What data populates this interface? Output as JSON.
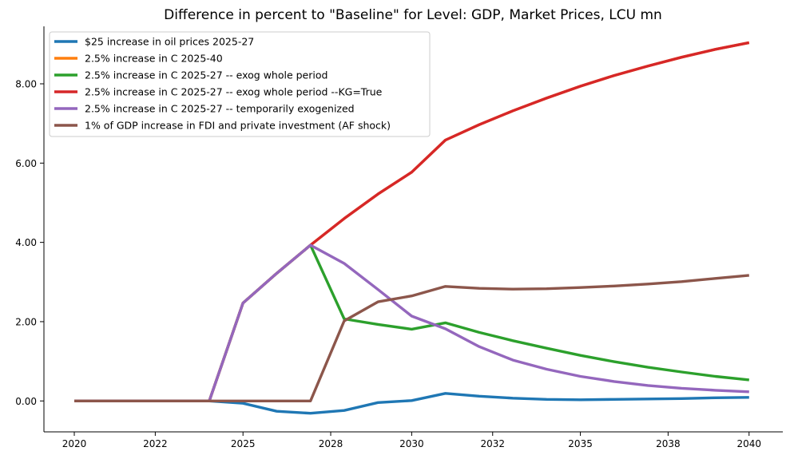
{
  "chart_data": {
    "type": "line",
    "title": "Difference in percent to \"Baseline\" for Level: GDP, Market Prices, LCU mn",
    "xlabel": "",
    "ylabel": "",
    "x": [
      2020,
      2021,
      2022,
      2023,
      2024,
      2025,
      2026,
      2027,
      2028,
      2029,
      2030,
      2031,
      2032,
      2033,
      2034,
      2035,
      2036,
      2037,
      2038,
      2039,
      2040
    ],
    "xticks": [
      2020,
      2022,
      2025,
      2028,
      2030,
      2032,
      2035,
      2038,
      2040
    ],
    "xtick_positions": [
      2020,
      2022.4,
      2025,
      2027.6,
      2030,
      2032.4,
      2035,
      2037.6,
      2040
    ],
    "yticks": [
      0,
      2,
      4,
      6,
      8
    ],
    "ytick_labels": [
      "0.00",
      "2.00",
      "4.00",
      "6.00",
      "8.00"
    ],
    "xlim": [
      2019.1,
      2041.0
    ],
    "ylim": [
      -0.78,
      9.45
    ],
    "grid": false,
    "legend_position": "top-left",
    "series": [
      {
        "name": "$25 increase in oil prices 2025-27",
        "color": "#1f77b4",
        "values": [
          0,
          0,
          0,
          0,
          0,
          -0.06,
          -0.26,
          -0.31,
          -0.24,
          -0.04,
          0.01,
          0.19,
          0.12,
          0.07,
          0.04,
          0.03,
          0.04,
          0.05,
          0.06,
          0.08,
          0.09
        ]
      },
      {
        "name": "2.5% increase in C 2025-40",
        "color": "#ff7f0e",
        "values": [
          0,
          0,
          0,
          0,
          0,
          2.47,
          3.22,
          3.93,
          4.6,
          5.22,
          5.77,
          6.58,
          6.97,
          7.32,
          7.64,
          7.94,
          8.21,
          8.45,
          8.67,
          8.87,
          9.04
        ]
      },
      {
        "name": "2.5% increase in C 2025-27 -- exog whole period",
        "color": "#2ca02c",
        "values": [
          0,
          0,
          0,
          0,
          0,
          2.47,
          3.22,
          3.93,
          2.07,
          1.93,
          1.81,
          1.97,
          1.73,
          1.52,
          1.33,
          1.15,
          0.99,
          0.85,
          0.73,
          0.62,
          0.53
        ]
      },
      {
        "name": "2.5% increase in C 2025-27 -- exog whole period --KG=True",
        "color": "#d62728",
        "values": [
          0,
          0,
          0,
          0,
          0,
          2.47,
          3.22,
          3.93,
          4.6,
          5.22,
          5.77,
          6.58,
          6.97,
          7.32,
          7.64,
          7.94,
          8.21,
          8.45,
          8.67,
          8.87,
          9.04
        ]
      },
      {
        "name": "2.5% increase in C 2025-27 -- temporarily exogenized",
        "color": "#9467bd",
        "values": [
          0,
          0,
          0,
          0,
          0,
          2.47,
          3.22,
          3.93,
          3.47,
          2.81,
          2.14,
          1.82,
          1.37,
          1.03,
          0.8,
          0.62,
          0.49,
          0.39,
          0.32,
          0.27,
          0.23
        ]
      },
      {
        "name": "1% of GDP increase in FDI and private investment (AF shock)",
        "color": "#8c564b",
        "values": [
          0,
          0,
          0,
          0,
          0,
          0,
          0,
          0,
          2.02,
          2.5,
          2.65,
          2.89,
          2.84,
          2.82,
          2.83,
          2.86,
          2.9,
          2.95,
          3.01,
          3.09,
          3.17
        ]
      }
    ]
  }
}
